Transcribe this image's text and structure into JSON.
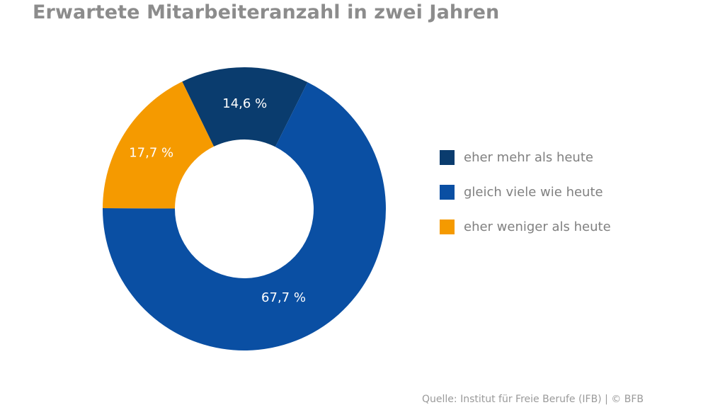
{
  "title": "Erwartete Mitarbeiteranzahl in zwei Jahren",
  "chart_data": {
    "type": "pie",
    "title": "Erwartete Mitarbeiteranzahl in zwei Jahren",
    "donut": true,
    "categories": [
      "eher mehr als heute",
      "gleich viele wie heute",
      "eher weniger als heute"
    ],
    "values": [
      14.6,
      67.7,
      17.7
    ],
    "data_labels": [
      "14,6 %",
      "67,7 %",
      "17,7 %"
    ],
    "colors": [
      "#0a3c6e",
      "#0a4fa3",
      "#f59a00"
    ],
    "legend_position": "right"
  },
  "source": "Quelle: Institut für Freie Berufe (IFB) | © BFB"
}
